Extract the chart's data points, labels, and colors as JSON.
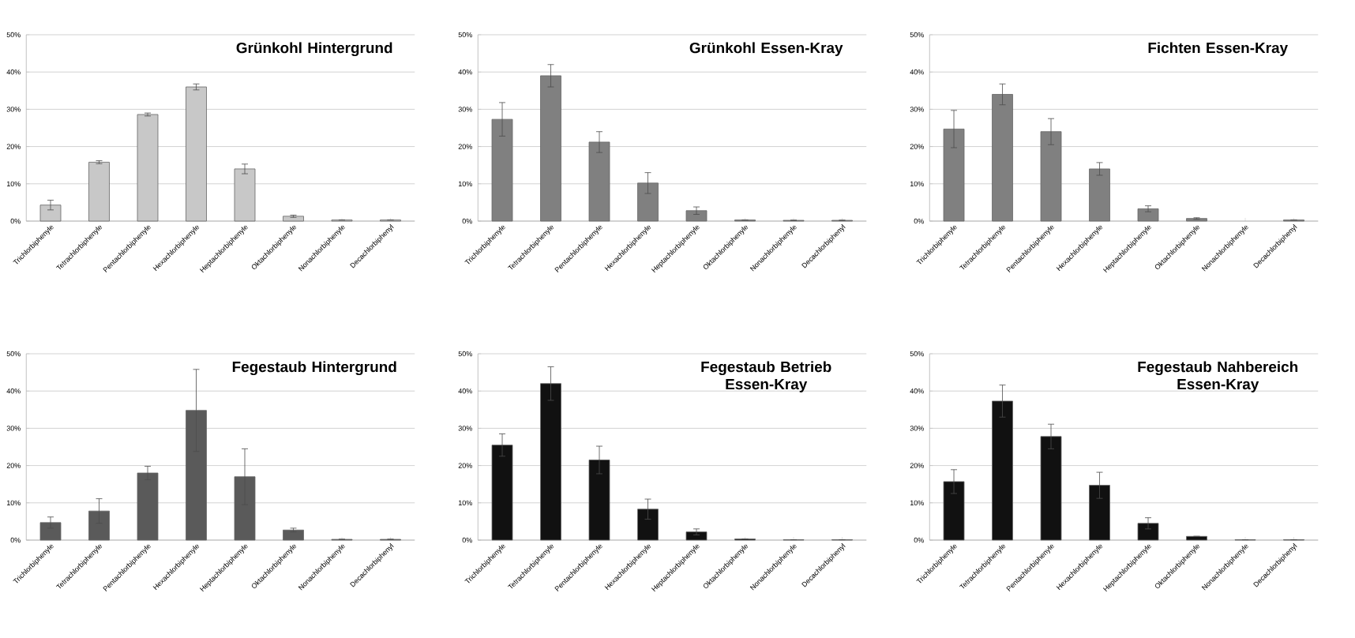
{
  "chart_data": [
    {
      "type": "bar",
      "title": "Grünkohl Hintergrund",
      "categories": [
        "Trichlorbiphenyle",
        "Tetrachlorbiphenyle",
        "Pentachlorbiphenyle",
        "Hexachlorbiphenyle",
        "Heptachlorbiphenyle",
        "Oktachlorbiphenyle",
        "Nonachlorbiphenyle",
        "Decachlorbiphenyl"
      ],
      "values": [
        4.3,
        15.8,
        28.6,
        36,
        14,
        1.3,
        0.3,
        0.3
      ],
      "errors": [
        1.3,
        0.4,
        0.4,
        0.8,
        1.3,
        0.3,
        null,
        null
      ],
      "color": "#c8c8c8",
      "ylim": [
        0,
        50
      ],
      "yticks": [
        {
          "value": 0,
          "label": "0%"
        },
        {
          "value": 10,
          "label": "10%"
        },
        {
          "value": 20,
          "label": "20%"
        },
        {
          "value": 30,
          "label": "30%"
        },
        {
          "value": 40,
          "label": "40%"
        },
        {
          "value": 50,
          "label": "50%"
        }
      ],
      "grid": "y"
    },
    {
      "type": "bar",
      "title": "Grünkohl Essen-Kray",
      "categories": [
        "Trichlorbiphenyle",
        "Tetrachlorbiphenyle",
        "Pentachlorbiphenyle",
        "Hexachlorbiphenyle",
        "Heptachlorbiphenyle",
        "Oktachlorbiphenyle",
        "Nonachlorbiphenyle",
        "Decachlorbiphenyl"
      ],
      "values": [
        27.3,
        39,
        21.2,
        10.2,
        2.8,
        0.3,
        0.2,
        0.2
      ],
      "errors": [
        4.5,
        3,
        2.8,
        2.8,
        1,
        null,
        null,
        null
      ],
      "color": "#808080",
      "ylim": [
        0,
        50
      ],
      "yticks": [
        {
          "value": 0,
          "label": "0%"
        },
        {
          "value": 10,
          "label": "10%"
        },
        {
          "value": 20,
          "label": "20%"
        },
        {
          "value": 30,
          "label": "30%"
        },
        {
          "value": 40,
          "label": "40%"
        },
        {
          "value": 50,
          "label": "50%"
        }
      ],
      "grid": "y"
    },
    {
      "type": "bar",
      "title": "Fichten Essen-Kray",
      "categories": [
        "Trichlorbiphenyle",
        "Tetrachlorbiphenyle",
        "Pentachlorbiphenyle",
        "Hexachlorbiphenyle",
        "Heptachlorbiphenyle",
        "Oktachlorbiphenyle",
        "Nonachlorbiphenyle",
        "Decachlorbiphenyl"
      ],
      "values": [
        24.7,
        34,
        24,
        14,
        3.3,
        0.7,
        null,
        0.3
      ],
      "errors": [
        5,
        2.8,
        3.5,
        1.7,
        0.8,
        0.2,
        null,
        null
      ],
      "color": "#808080",
      "ylim": [
        0,
        50
      ],
      "yticks": [
        {
          "value": 0,
          "label": "0%"
        },
        {
          "value": 10,
          "label": "10%"
        },
        {
          "value": 20,
          "label": "20%"
        },
        {
          "value": 30,
          "label": "30%"
        },
        {
          "value": 40,
          "label": "40%"
        },
        {
          "value": 50,
          "label": "50%"
        }
      ],
      "grid": "y"
    },
    {
      "type": "bar",
      "title": "Fegestaub Hintergrund",
      "categories": [
        "Trichlorbiphenyle",
        "Tetrachlorbiphenyle",
        "Pentachlorbiphenyle",
        "Hexachlorbiphenyle",
        "Heptachlorbiphenyle",
        "Oktachlorbiphenyle",
        "Nonachlorbiphenyle",
        "Decachlorbiphenyl"
      ],
      "values": [
        4.7,
        7.8,
        18,
        34.8,
        17,
        2.7,
        0.2,
        0.2
      ],
      "errors": [
        1.5,
        3.3,
        1.8,
        11,
        7.5,
        0.5,
        null,
        null
      ],
      "color": "#5a5a5a",
      "ylim": [
        0,
        50
      ],
      "yticks": [
        {
          "value": 0,
          "label": "0%"
        },
        {
          "value": 10,
          "label": "10%"
        },
        {
          "value": 20,
          "label": "20%"
        },
        {
          "value": 30,
          "label": "30%"
        },
        {
          "value": 40,
          "label": "40%"
        },
        {
          "value": 50,
          "label": "50%"
        }
      ],
      "grid": "y"
    },
    {
      "type": "bar",
      "title": "Fegestaub Betrieb Essen-Kray",
      "categories": [
        "Trichlorbiphenyle",
        "Tetrachlorbiphenyle",
        "Pentachlorbiphenyle",
        "Hexachlorbiphenyle",
        "Heptachlorbiphenyle",
        "Oktachlorbiphenyle",
        "Nonachlorbiphenyle",
        "Decachlorbiphenyl"
      ],
      "values": [
        25.5,
        42,
        21.5,
        8.3,
        2.2,
        0.3,
        0.1,
        0.1
      ],
      "errors": [
        3,
        4.5,
        3.7,
        2.7,
        0.8,
        null,
        null,
        null
      ],
      "color": "#111111",
      "ylim": [
        0,
        50
      ],
      "yticks": [
        {
          "value": 0,
          "label": "0%"
        },
        {
          "value": 10,
          "label": "10%"
        },
        {
          "value": 20,
          "label": "20%"
        },
        {
          "value": 30,
          "label": "30%"
        },
        {
          "value": 40,
          "label": "40%"
        },
        {
          "value": 50,
          "label": "50%"
        }
      ],
      "grid": "y"
    },
    {
      "type": "bar",
      "title": "Fegestaub Nahbereich Essen-Kray",
      "categories": [
        "Trichlorbiphenyle",
        "Tetrachlorbiphenyle",
        "Pentachlorbiphenyle",
        "Hexachlorbiphenyle",
        "Heptachlorbiphenyle",
        "Oktachlorbiphenyle",
        "Nonachlorbiphenyle",
        "Decachlorbiphenyl"
      ],
      "values": [
        15.7,
        37.3,
        27.8,
        14.7,
        4.5,
        1,
        0.1,
        0.1
      ],
      "errors": [
        3.2,
        4.3,
        3.3,
        3.5,
        1.5,
        null,
        null,
        null
      ],
      "color": "#111111",
      "ylim": [
        0,
        50
      ],
      "yticks": [
        {
          "value": 0,
          "label": "0%"
        },
        {
          "value": 10,
          "label": "10%"
        },
        {
          "value": 20,
          "label": "20%"
        },
        {
          "value": 30,
          "label": "30%"
        },
        {
          "value": 40,
          "label": "40%"
        },
        {
          "value": 50,
          "label": "50%"
        }
      ],
      "grid": "y"
    }
  ]
}
